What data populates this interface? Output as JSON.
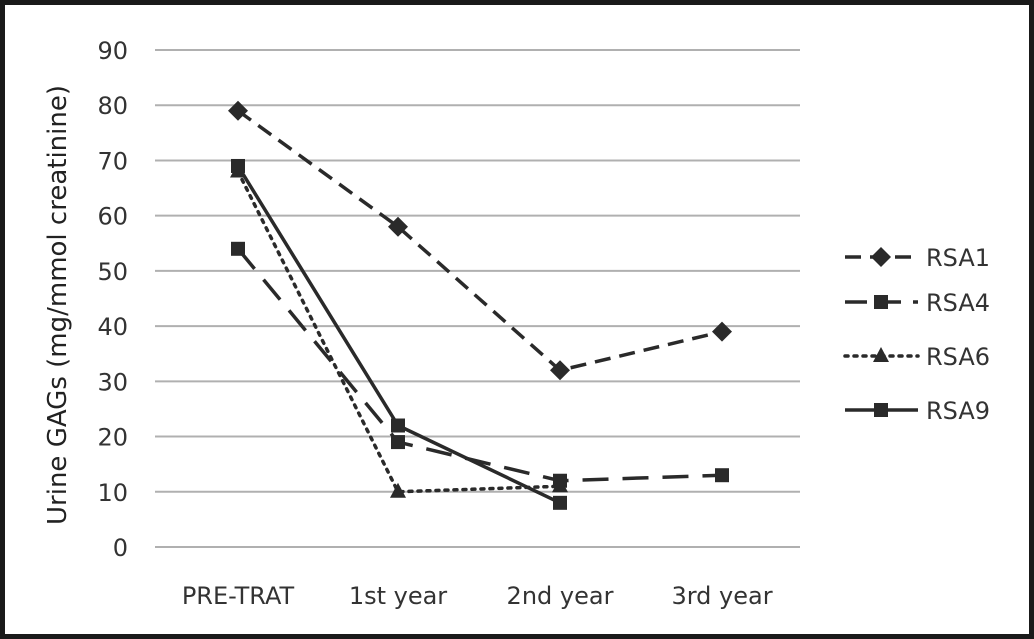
{
  "chart_data": {
    "type": "line",
    "title": "",
    "xlabel": "",
    "ylabel": "Urine GAGs (mg/mmol creatinine)",
    "categories": [
      "PRE-TRAT",
      "1st year",
      "2nd year",
      "3rd year"
    ],
    "ylim": [
      0,
      90
    ],
    "yticks": [
      0,
      10,
      20,
      30,
      40,
      50,
      60,
      70,
      80,
      90
    ],
    "grid": true,
    "legend_position": "right",
    "series": [
      {
        "name": "RSA1",
        "values": [
          79,
          58,
          32,
          39
        ],
        "marker": "diamond",
        "dash": "dashed"
      },
      {
        "name": "RSA4",
        "values": [
          54,
          19,
          12,
          13
        ],
        "marker": "square",
        "dash": "long-dash"
      },
      {
        "name": "RSA6",
        "values": [
          68,
          10,
          11,
          null
        ],
        "marker": "triangle",
        "dash": "dotted"
      },
      {
        "name": "RSA9",
        "values": [
          69,
          22,
          8,
          null
        ],
        "marker": "square",
        "dash": "solid"
      }
    ],
    "colors": {
      "line": "#2a2a2a",
      "grid": "#b0b0b0"
    }
  }
}
